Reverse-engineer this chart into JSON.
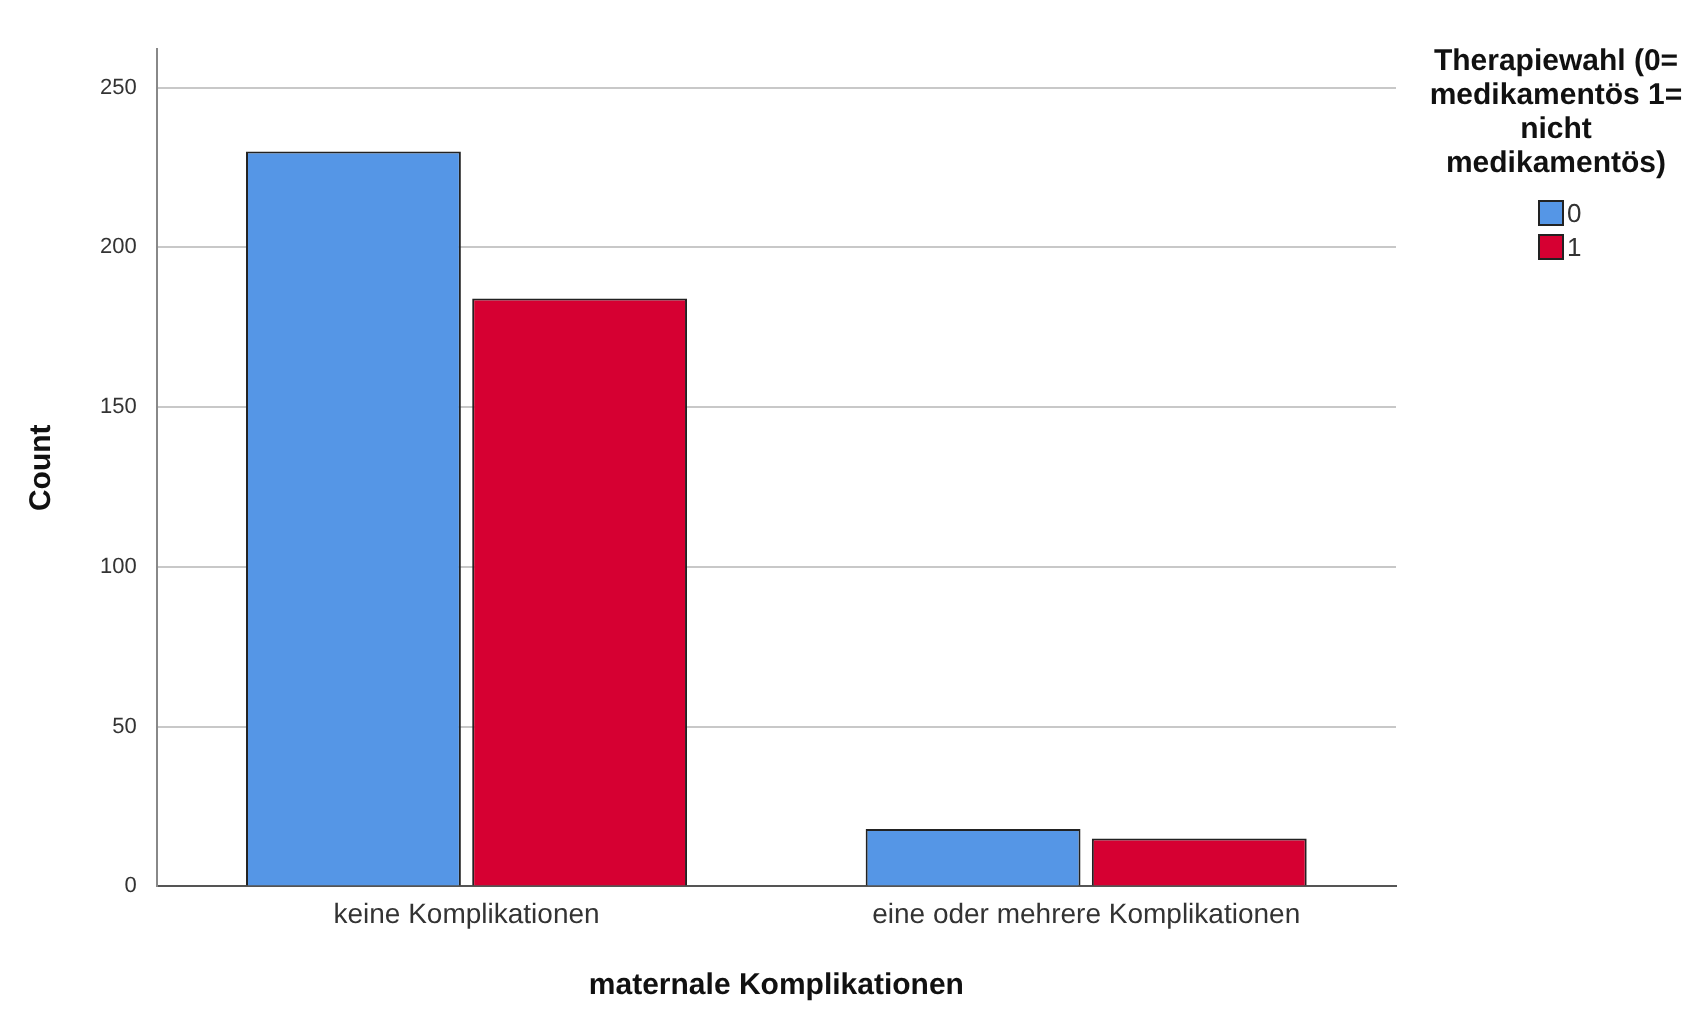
{
  "chart_data": {
    "type": "bar",
    "xlabel": "maternale Komplikationen",
    "ylabel": "Count",
    "legend_title": "Therapiewahl (0= medikamentös 1= nicht medikamentös)",
    "categories": [
      "keine Komplikationen",
      "eine oder mehrere Komplikationen"
    ],
    "series": [
      {
        "name": "0",
        "color": "#5596e6",
        "values": [
          230,
          18
        ]
      },
      {
        "name": "1",
        "color": "#d60032",
        "values": [
          184,
          15
        ]
      }
    ],
    "ylim": [
      0,
      262
    ],
    "yticks": [
      0,
      50,
      100,
      150,
      200,
      250
    ],
    "grid": "y",
    "legend": "top right"
  }
}
